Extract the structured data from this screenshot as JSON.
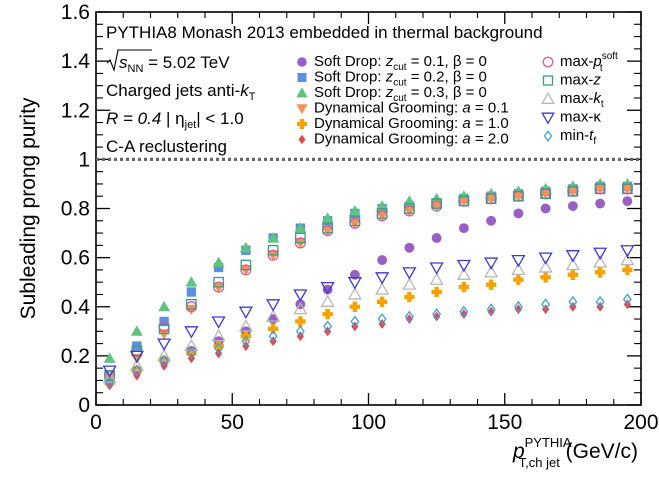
{
  "chart_data": {
    "type": "scatter",
    "info_lines": [
      {
        "key": "l1",
        "text": "PYTHIA8 Monash 2013 embedded in thermal background"
      },
      {
        "key": "l2",
        "text": "= 5.02 TeV",
        "prefix": "s",
        "prefix_sub": "NN"
      },
      {
        "key": "l3",
        "text": "Charged jets anti-",
        "suffix": "k",
        "suffix_sub": "T"
      },
      {
        "key": "l4",
        "text": "R = 0.4",
        "text2": "| η",
        "sub2": "jet",
        "text3": "| < 1.0"
      },
      {
        "key": "l5",
        "text": "C-A reclustering"
      }
    ],
    "xlabel": "p",
    "xlabel_sup": "PYTHIA",
    "xlabel_sub": "T,ch jet",
    "xlabel_unit": "(GeV/c)",
    "ylabel": "Subleading prong purity",
    "xlim": [
      0,
      200
    ],
    "ylim": [
      0,
      1.6
    ],
    "xticks": [
      0,
      50,
      100,
      150,
      200
    ],
    "xtick_labels": [
      "0",
      "50",
      "100",
      "150",
      "200"
    ],
    "yticks": [
      0,
      0.2,
      0.4,
      0.6,
      0.8,
      1,
      1.2,
      1.4,
      1.6
    ],
    "ytick_labels": [
      "0",
      "0.2",
      "0.4",
      "0.6",
      "0.8",
      "1",
      "1.2",
      "1.4",
      "1.6"
    ],
    "reference_line_y": 1,
    "grid": false,
    "legend_placement": "top-right",
    "x": [
      5,
      15,
      25,
      35,
      45,
      55,
      65,
      75,
      85,
      95,
      105,
      115,
      125,
      135,
      145,
      155,
      165,
      175,
      185,
      195
    ],
    "series": [
      {
        "name": "Soft Drop: z_cut = 0.1, β = 0",
        "label_parts": [
          "Soft Drop: ",
          "z",
          "cut",
          " = 0.1, β = 0"
        ],
        "marker": "circle",
        "filled": true,
        "color": "#9a5fc4",
        "values": [
          0.1,
          0.14,
          0.18,
          0.22,
          0.26,
          0.3,
          0.35,
          0.41,
          0.47,
          0.53,
          0.59,
          0.64,
          0.68,
          0.72,
          0.75,
          0.78,
          0.8,
          0.81,
          0.82,
          0.83
        ]
      },
      {
        "name": "Soft Drop: z_cut = 0.2, β = 0",
        "label_parts": [
          "Soft Drop: ",
          "z",
          "cut",
          " = 0.2, β = 0"
        ],
        "marker": "square",
        "filled": true,
        "color": "#5b8fe0",
        "values": [
          0.12,
          0.24,
          0.34,
          0.46,
          0.56,
          0.63,
          0.68,
          0.72,
          0.75,
          0.78,
          0.8,
          0.81,
          0.82,
          0.84,
          0.85,
          0.86,
          0.87,
          0.88,
          0.89,
          0.89
        ]
      },
      {
        "name": "Soft Drop: z_cut = 0.3, β = 0",
        "label_parts": [
          "Soft Drop: ",
          "z",
          "cut",
          " = 0.3, β = 0"
        ],
        "marker": "triangle-up",
        "filled": true,
        "color": "#5fc47e",
        "values": [
          0.19,
          0.3,
          0.4,
          0.5,
          0.58,
          0.64,
          0.68,
          0.72,
          0.76,
          0.79,
          0.81,
          0.83,
          0.84,
          0.85,
          0.86,
          0.87,
          0.88,
          0.89,
          0.9,
          0.9
        ]
      },
      {
        "name": "Dynamical Grooming: a = 0.1",
        "label_parts": [
          "Dynamical Grooming: ",
          "a",
          "",
          " = 0.1"
        ],
        "marker": "triangle-down",
        "filled": true,
        "color": "#f2945a",
        "values": [
          0.11,
          0.19,
          0.29,
          0.39,
          0.48,
          0.55,
          0.61,
          0.66,
          0.71,
          0.74,
          0.77,
          0.79,
          0.81,
          0.83,
          0.84,
          0.85,
          0.86,
          0.87,
          0.88,
          0.88
        ]
      },
      {
        "name": "Dynamical Grooming: a = 1.0",
        "label_parts": [
          "Dynamical Grooming: ",
          "a",
          "",
          " = 1.0"
        ],
        "marker": "plus",
        "filled": true,
        "color": "#f5a300",
        "values": [
          0.09,
          0.14,
          0.18,
          0.21,
          0.24,
          0.28,
          0.31,
          0.34,
          0.37,
          0.4,
          0.42,
          0.44,
          0.46,
          0.48,
          0.49,
          0.51,
          0.52,
          0.53,
          0.54,
          0.55
        ]
      },
      {
        "name": "Dynamical Grooming: a = 2.0",
        "label_parts": [
          "Dynamical Grooming: ",
          "a",
          "",
          " = 2.0"
        ],
        "marker": "diamond",
        "filled": true,
        "color": "#e6484b",
        "values": [
          0.08,
          0.12,
          0.16,
          0.19,
          0.21,
          0.24,
          0.26,
          0.28,
          0.3,
          0.32,
          0.33,
          0.35,
          0.36,
          0.37,
          0.38,
          0.39,
          0.39,
          0.4,
          0.4,
          0.41
        ]
      },
      {
        "name": "max-p^soft_t",
        "label_parts": [
          "max-",
          "p",
          "t",
          "",
          "soft"
        ],
        "marker": "circle",
        "filled": false,
        "color": "#e8559b",
        "values": [
          0.12,
          0.22,
          0.32,
          0.4,
          0.48,
          0.55,
          0.61,
          0.66,
          0.71,
          0.74,
          0.77,
          0.79,
          0.81,
          0.83,
          0.84,
          0.85,
          0.86,
          0.87,
          0.88,
          0.88
        ]
      },
      {
        "name": "max-z",
        "label_parts": [
          "max-",
          "z",
          "",
          ""
        ],
        "marker": "square",
        "filled": false,
        "color": "#3a9c8a",
        "values": [
          0.12,
          0.22,
          0.31,
          0.41,
          0.5,
          0.57,
          0.63,
          0.68,
          0.72,
          0.75,
          0.78,
          0.8,
          0.82,
          0.83,
          0.84,
          0.85,
          0.86,
          0.87,
          0.88,
          0.88
        ]
      },
      {
        "name": "max-k_t",
        "label_parts": [
          "max-",
          "k",
          "t",
          ""
        ],
        "marker": "triangle-up",
        "filled": false,
        "color": "#b8b8b8",
        "values": [
          0.11,
          0.16,
          0.2,
          0.24,
          0.28,
          0.32,
          0.36,
          0.39,
          0.42,
          0.45,
          0.47,
          0.49,
          0.51,
          0.53,
          0.54,
          0.55,
          0.56,
          0.57,
          0.58,
          0.59
        ]
      },
      {
        "name": "max-κ",
        "label_parts": [
          "max-κ",
          "",
          "",
          ""
        ],
        "marker": "triangle-down",
        "filled": false,
        "color": "#3a3ad6",
        "values": [
          0.14,
          0.2,
          0.25,
          0.3,
          0.34,
          0.38,
          0.41,
          0.45,
          0.48,
          0.5,
          0.52,
          0.54,
          0.56,
          0.57,
          0.58,
          0.59,
          0.6,
          0.61,
          0.62,
          0.63
        ]
      },
      {
        "name": "min-t_f",
        "label_parts": [
          "min-",
          "t",
          "f",
          ""
        ],
        "marker": "diamond",
        "filled": false,
        "color": "#3aa0d8",
        "values": [
          0.09,
          0.14,
          0.18,
          0.21,
          0.23,
          0.26,
          0.28,
          0.3,
          0.32,
          0.34,
          0.35,
          0.36,
          0.37,
          0.38,
          0.39,
          0.4,
          0.41,
          0.42,
          0.42,
          0.43
        ]
      }
    ]
  }
}
